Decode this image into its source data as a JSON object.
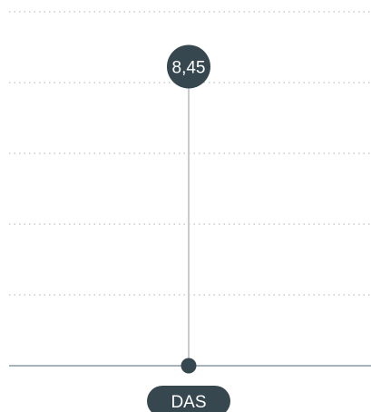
{
  "chart_data": {
    "type": "lollipop",
    "categories": [
      "DAS"
    ],
    "values": [
      8.45
    ],
    "value_labels": [
      "8,45"
    ],
    "ylim": [
      0,
      10
    ],
    "grid": true,
    "colors": {
      "marker": "#37474f",
      "stem": "#cccccc",
      "grid": "#b0b0b0",
      "baseline": "#8a9aa3",
      "label_text": "#ffffff"
    }
  }
}
